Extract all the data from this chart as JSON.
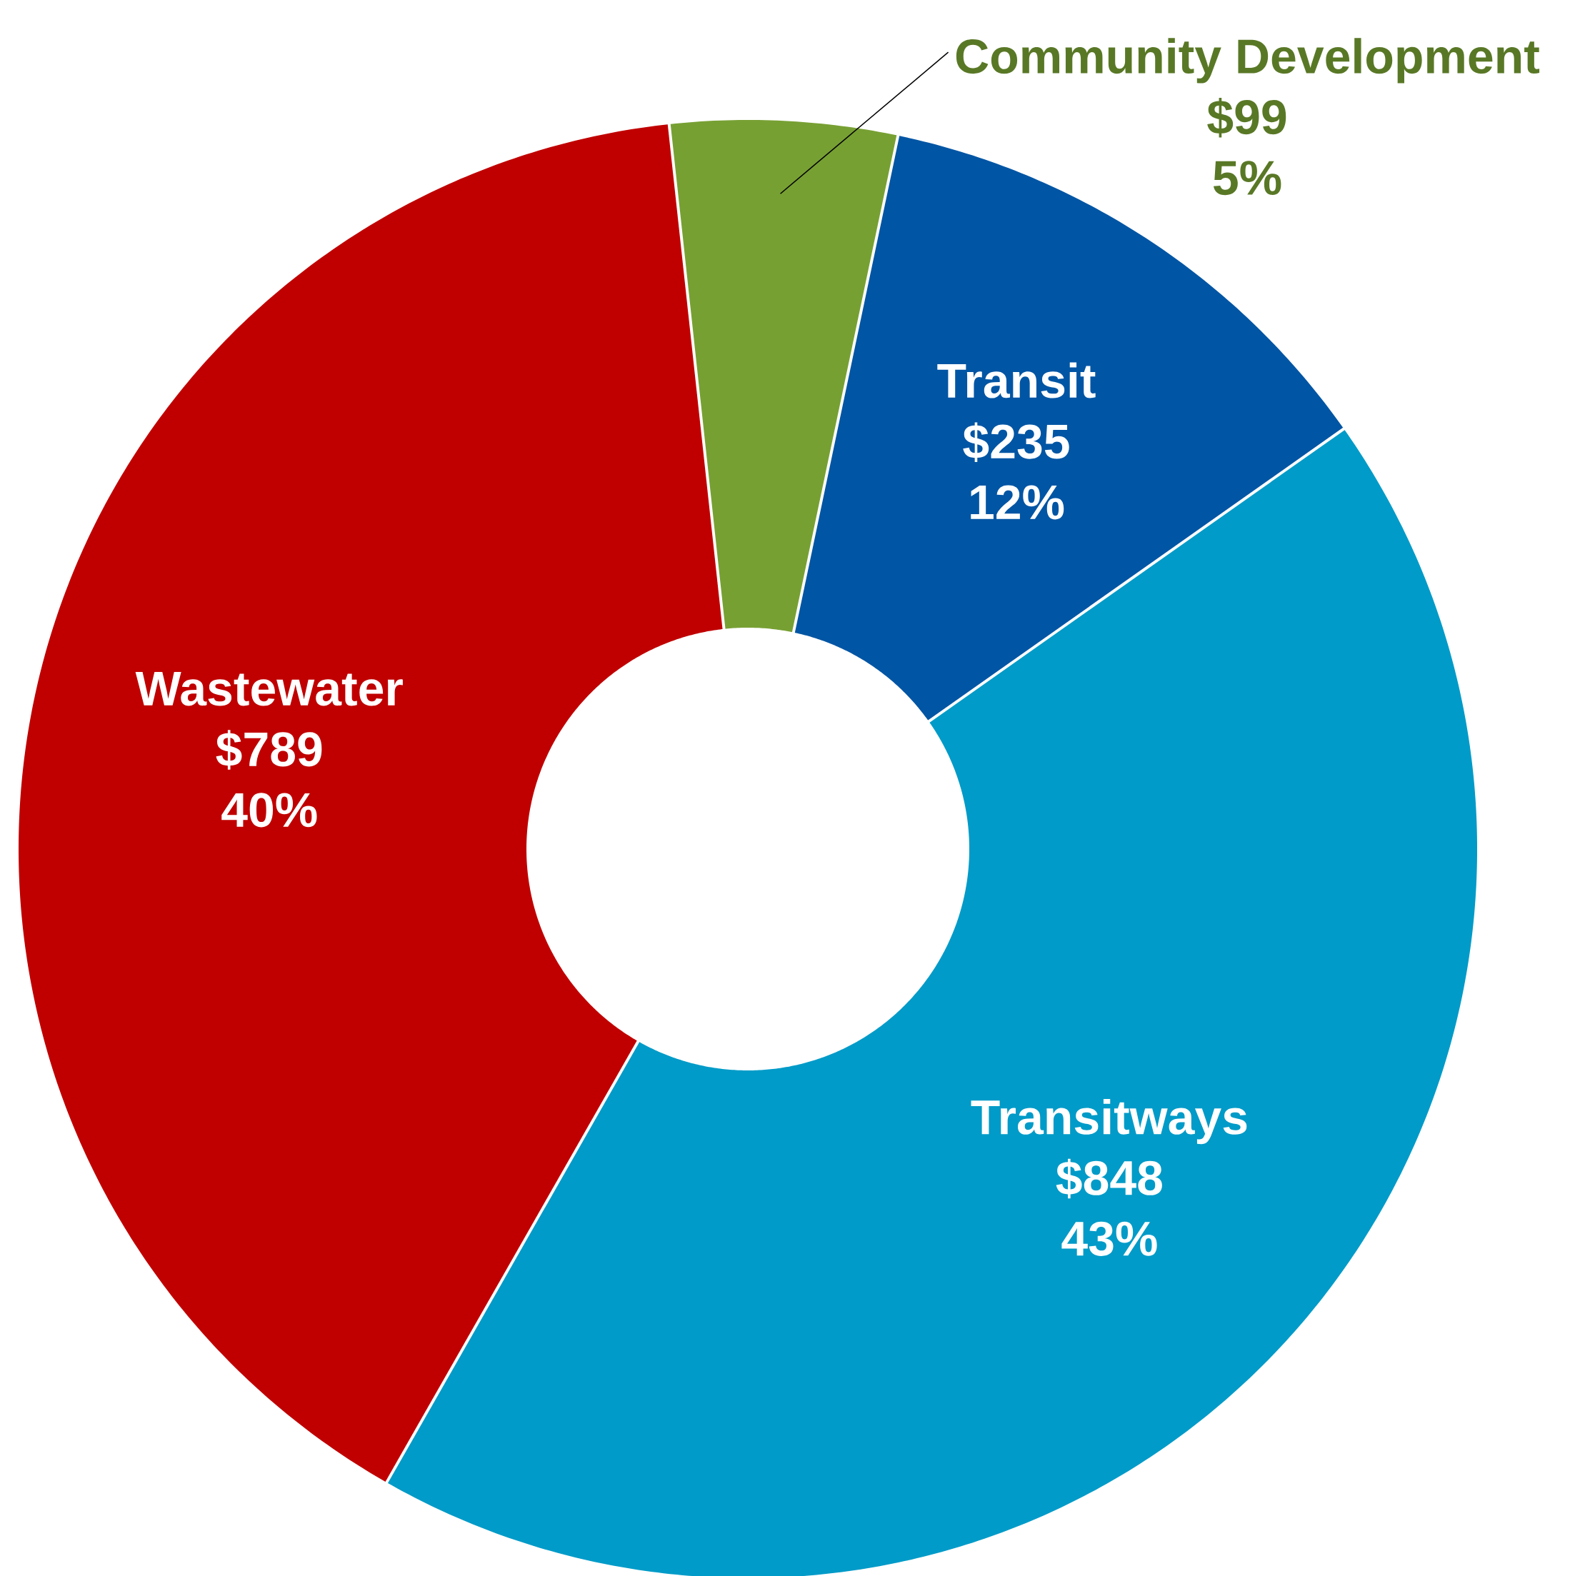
{
  "chart_data": {
    "type": "donut",
    "categories": [
      "Community Development",
      "Transit",
      "Transitways",
      "Wastewater"
    ],
    "values": [
      99,
      235,
      848,
      789
    ],
    "colors": [
      "#77a033",
      "#0055a4",
      "#009bc8",
      "#c00000"
    ],
    "value_labels": [
      "$99",
      "$235",
      "$848",
      "$789"
    ],
    "annotations": [
      "5%",
      "12%",
      "43%",
      "40%"
    ]
  }
}
